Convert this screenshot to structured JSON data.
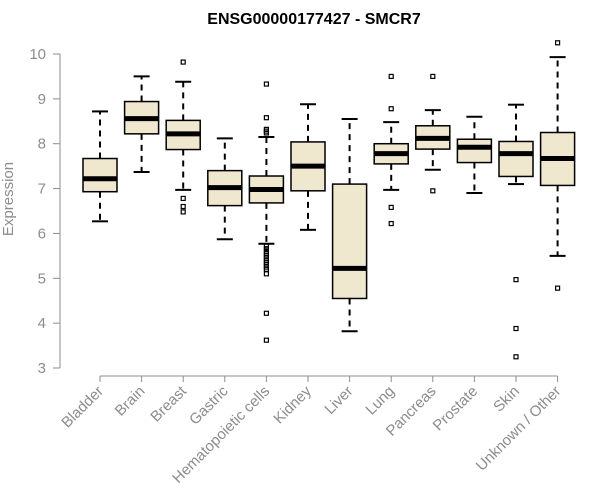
{
  "chart_data": {
    "type": "box",
    "title": "ENSG00000177427 - SMCR7",
    "xlabel": "",
    "ylabel": "Expression",
    "ylim": [
      3,
      10
    ],
    "yticks": [
      3,
      4,
      5,
      6,
      7,
      8,
      9,
      10
    ],
    "categories": [
      "Bladder",
      "Brain",
      "Breast",
      "Gastric",
      "Hematopoietic cells",
      "Kidney",
      "Liver",
      "Lung",
      "Pancreas",
      "Prostate",
      "Skin",
      "Unknown / Other"
    ],
    "boxes": [
      {
        "name": "Bladder",
        "whisker_low": 6.27,
        "q1": 6.93,
        "median": 7.22,
        "q3": 7.67,
        "whisker_high": 8.72,
        "outliers": []
      },
      {
        "name": "Brain",
        "whisker_low": 7.37,
        "q1": 8.22,
        "median": 8.56,
        "q3": 8.94,
        "whisker_high": 9.5,
        "outliers": []
      },
      {
        "name": "Breast",
        "whisker_low": 6.97,
        "q1": 7.87,
        "median": 8.22,
        "q3": 8.52,
        "whisker_high": 9.38,
        "outliers": [
          9.82,
          6.78,
          6.6,
          6.48
        ]
      },
      {
        "name": "Gastric",
        "whisker_low": 5.87,
        "q1": 6.62,
        "median": 7.02,
        "q3": 7.4,
        "whisker_high": 8.12,
        "outliers": []
      },
      {
        "name": "Hematopoietic cells",
        "whisker_low": 5.77,
        "q1": 6.68,
        "median": 6.98,
        "q3": 7.28,
        "whisker_high": 8.15,
        "outliers": [
          9.33,
          8.58,
          8.32,
          8.28,
          8.24,
          5.72,
          5.66,
          5.6,
          5.55,
          5.5,
          5.45,
          5.4,
          5.35,
          5.3,
          5.25,
          5.2,
          5.1,
          4.22,
          3.62
        ]
      },
      {
        "name": "Kidney",
        "whisker_low": 6.08,
        "q1": 6.95,
        "median": 7.5,
        "q3": 8.04,
        "whisker_high": 8.88,
        "outliers": []
      },
      {
        "name": "Liver",
        "whisker_low": 3.82,
        "q1": 4.55,
        "median": 5.22,
        "q3": 7.1,
        "whisker_high": 8.55,
        "outliers": []
      },
      {
        "name": "Lung",
        "whisker_low": 6.97,
        "q1": 7.55,
        "median": 7.78,
        "q3": 8.0,
        "whisker_high": 8.48,
        "outliers": [
          9.5,
          8.78,
          6.58,
          6.22
        ]
      },
      {
        "name": "Pancreas",
        "whisker_low": 7.42,
        "q1": 7.88,
        "median": 8.12,
        "q3": 8.4,
        "whisker_high": 8.75,
        "outliers": [
          9.5,
          6.95
        ]
      },
      {
        "name": "Prostate",
        "whisker_low": 6.9,
        "q1": 7.58,
        "median": 7.92,
        "q3": 8.1,
        "whisker_high": 8.6,
        "outliers": []
      },
      {
        "name": "Skin",
        "whisker_low": 7.1,
        "q1": 7.27,
        "median": 7.78,
        "q3": 8.05,
        "whisker_high": 8.87,
        "outliers": [
          4.97,
          3.88,
          3.25
        ]
      },
      {
        "name": "Unknown / Other",
        "whisker_low": 5.5,
        "q1": 7.07,
        "median": 7.67,
        "q3": 8.25,
        "whisker_high": 9.93,
        "outliers": [
          10.25,
          4.78
        ]
      }
    ],
    "colors": {
      "box_fill": "#efe8cf",
      "box_stroke": "#000000",
      "axis": "#8c8c8c",
      "text": "#8c8c8c",
      "title": "#000000"
    }
  }
}
